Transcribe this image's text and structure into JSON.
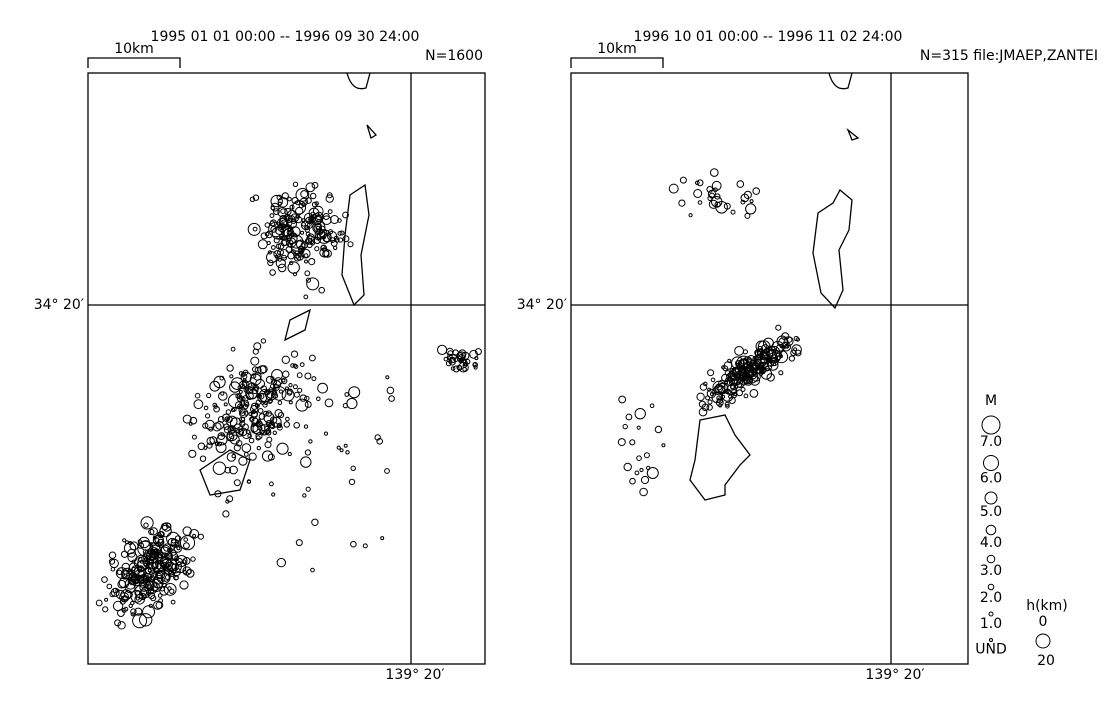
{
  "panels": [
    {
      "period": "1995 01 01 00:00  --  1996 09 30 24:00",
      "scale": "10km",
      "count": "N=1600",
      "lat_label": "34° 20′",
      "lon_label": "139° 20′"
    },
    {
      "period": "1996 10 01 00:00  --  1996 11 02 24:00",
      "scale": "10km",
      "count": "N=315 file:JMAEP,ZANTEI",
      "lat_label": "34° 20′",
      "lon_label": "139° 20′"
    }
  ],
  "legend": {
    "magnitude_title": "M",
    "magnitude_labels": [
      "7.0",
      "6.0",
      "5.0",
      "4.0",
      "3.0",
      "2.0",
      "1.0",
      "UND"
    ],
    "depth_title": "h(km)",
    "depth_labels": [
      "0",
      "20"
    ]
  }
}
